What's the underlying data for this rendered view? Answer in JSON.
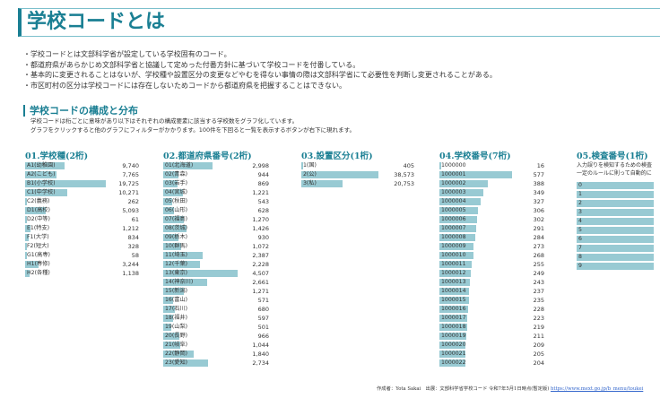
{
  "title": "学校コードとは",
  "bullets": [
    "・学校コードとは文部科学省が設定している学校固有のコード。",
    "・都道府県があらかじめ文部科学省と協議して定めった付番方針に基づいて学校コードを付番している。",
    "・基本的に変更されることはないが、学校種や設置区分の変更などやむを得ない事情の際は文部科学省にて必要性を判断し変更されることがある。",
    "・市区町村の区分は学校コードには存在しないためコードから都道府県を把握することはできない。"
  ],
  "section": {
    "title": "学校コードの構成と分布",
    "desc": [
      "学校コードは桁ごとに意味があり以下はそれぞれの構成要素に該当する学校数をグラフ化しています。",
      "グラフをクリックすると他のグラフにフィルターがかかります。100件を下回ると一覧を表示するボタンが右下に現れます。"
    ]
  },
  "bar_color": "#98cad3",
  "accent": "#1a7f93",
  "panels": [
    {
      "title": "01.学校種(2桁)",
      "rows": [
        [
          "A1(幼稚園)",
          "9,740",
          9740
        ],
        [
          "A2(こども)",
          "7,765",
          7765
        ],
        [
          "B1(小学校)",
          "19,725",
          19725
        ],
        [
          "C1(中学校)",
          "10,271",
          10271
        ],
        [
          "C2(義務)",
          "262",
          262
        ],
        [
          "D1(高校)",
          "5,093",
          5093
        ],
        [
          "D2(中等)",
          "61",
          61
        ],
        [
          "E1(特支)",
          "1,212",
          1212
        ],
        [
          "F1(大学)",
          "834",
          834
        ],
        [
          "F2(短大)",
          "328",
          328
        ],
        [
          "G1(高専)",
          "58",
          58
        ],
        [
          "H1(専修)",
          "3,244",
          3244
        ],
        [
          "H2(各種)",
          "1,138",
          1138
        ]
      ]
    },
    {
      "title": "02.都道府県番号(2桁)",
      "rows": [
        [
          "01(北海道)",
          "2,998",
          2998
        ],
        [
          "02(青森)",
          "944",
          944
        ],
        [
          "03(岩手)",
          "869",
          869
        ],
        [
          "04(宮城)",
          "1,221",
          1221
        ],
        [
          "05(秋田)",
          "543",
          543
        ],
        [
          "06(山形)",
          "628",
          628
        ],
        [
          "07(福島)",
          "1,270",
          1270
        ],
        [
          "08(茨城)",
          "1,426",
          1426
        ],
        [
          "09(栃木)",
          "930",
          930
        ],
        [
          "10(群馬)",
          "1,072",
          1072
        ],
        [
          "11(埼玉)",
          "2,387",
          2387
        ],
        [
          "12(千葉)",
          "2,228",
          2228
        ],
        [
          "13(東京)",
          "4,507",
          4507
        ],
        [
          "14(神奈川)",
          "2,661",
          2661
        ],
        [
          "15(新潟)",
          "1,271",
          1271
        ],
        [
          "16(富山)",
          "571",
          571
        ],
        [
          "17(石川)",
          "680",
          680
        ],
        [
          "18(福井)",
          "597",
          597
        ],
        [
          "19(山梨)",
          "501",
          501
        ],
        [
          "20(長野)",
          "966",
          966
        ],
        [
          "21(岐阜)",
          "1,044",
          1044
        ],
        [
          "22(静岡)",
          "1,840",
          1840
        ],
        [
          "23(愛知)",
          "2,734",
          2734
        ]
      ]
    },
    {
      "title": "03.設置区分(1桁)",
      "rows": [
        [
          "1(国)",
          "405",
          405
        ],
        [
          "2(公)",
          "38,573",
          38573
        ],
        [
          "3(私)",
          "20,753",
          20753
        ]
      ]
    },
    {
      "title": "04.学校番号(7桁)",
      "rows": [
        [
          "1000000",
          "16",
          16
        ],
        [
          "1000001",
          "577",
          577
        ],
        [
          "1000002",
          "388",
          388
        ],
        [
          "1000003",
          "349",
          349
        ],
        [
          "1000004",
          "327",
          327
        ],
        [
          "1000005",
          "306",
          306
        ],
        [
          "1000006",
          "302",
          302
        ],
        [
          "1000007",
          "291",
          291
        ],
        [
          "1000008",
          "284",
          284
        ],
        [
          "1000009",
          "273",
          273
        ],
        [
          "1000010",
          "268",
          268
        ],
        [
          "1000011",
          "255",
          255
        ],
        [
          "1000012",
          "249",
          249
        ],
        [
          "1000013",
          "243",
          243
        ],
        [
          "1000014",
          "237",
          237
        ],
        [
          "1000015",
          "235",
          235
        ],
        [
          "1000016",
          "228",
          228
        ],
        [
          "1000017",
          "223",
          223
        ],
        [
          "1000018",
          "219",
          219
        ],
        [
          "1000019",
          "211",
          211
        ],
        [
          "1000020",
          "209",
          209
        ],
        [
          "1000021",
          "205",
          205
        ],
        [
          "1000022",
          "204",
          204
        ]
      ]
    },
    {
      "title": "05.検査番号(1桁)",
      "desc": [
        "入力誤りを検知するための検査",
        "一定のルールに則って自動的に"
      ],
      "rows": [
        [
          "0",
          "",
          1
        ],
        [
          "1",
          "",
          1
        ],
        [
          "2",
          "",
          1
        ],
        [
          "3",
          "",
          1
        ],
        [
          "4",
          "",
          1
        ],
        [
          "5",
          "",
          1
        ],
        [
          "6",
          "",
          1
        ],
        [
          "7",
          "",
          1
        ],
        [
          "8",
          "",
          1
        ],
        [
          "9",
          "",
          1
        ]
      ]
    }
  ],
  "footer": {
    "text": "作成者：Yota Sakai　出展：文部科学省学校コード 令和7年5月1日時点(暫定版) ",
    "link": "https://www.mext.go.jp/b_menu/toukei"
  }
}
